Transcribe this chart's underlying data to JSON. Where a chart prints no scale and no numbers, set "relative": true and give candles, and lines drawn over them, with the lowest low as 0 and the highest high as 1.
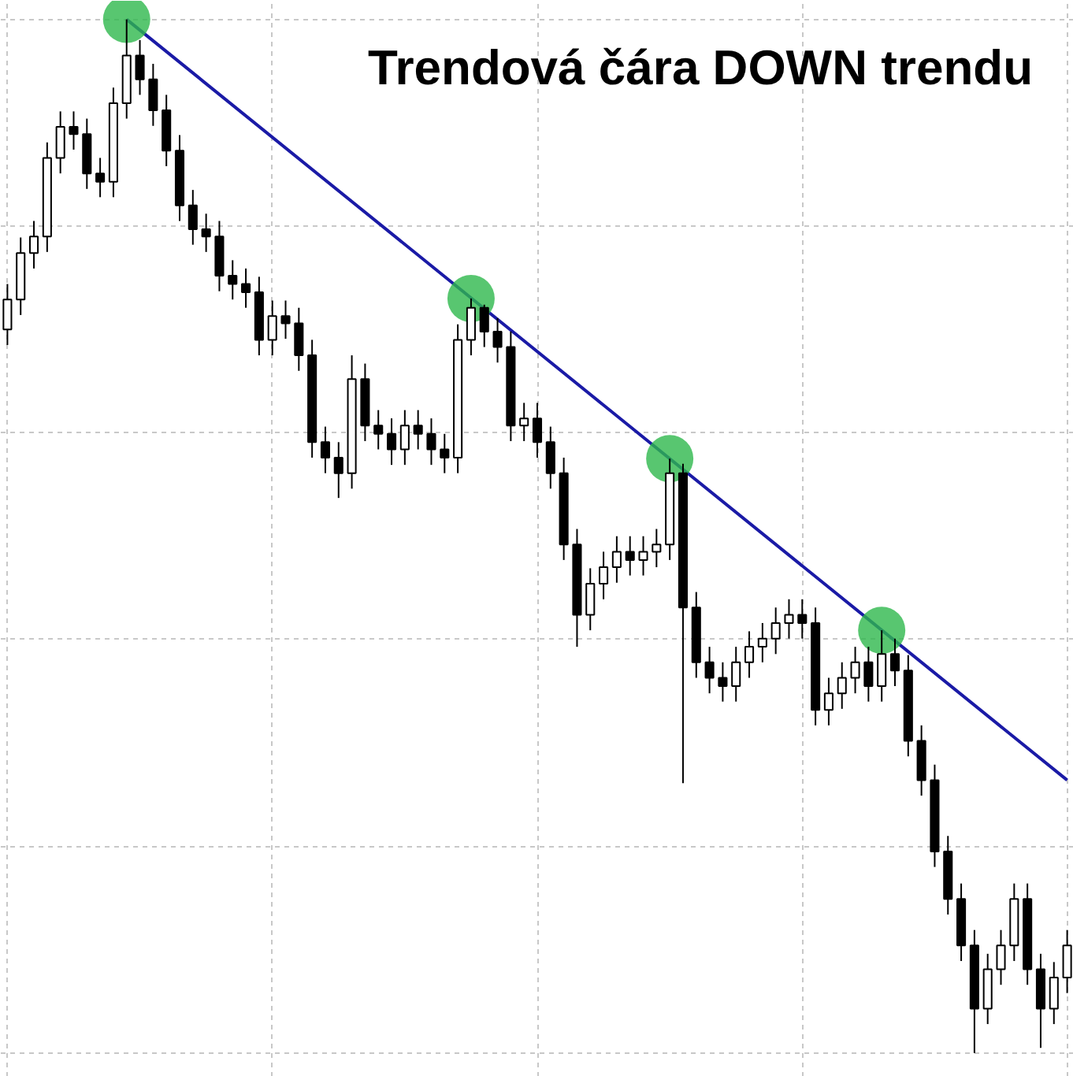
{
  "chart_data": {
    "type": "candlestick",
    "title": "Trendová čára DOWN trendu",
    "relative": true,
    "grid": true,
    "tick_labels": false,
    "categories": [
      null,
      null,
      null,
      null,
      null,
      null,
      null,
      null,
      null,
      null,
      null,
      null,
      null,
      null,
      null,
      null,
      null,
      null,
      null,
      null,
      null,
      null,
      null,
      null,
      null,
      null,
      null,
      null,
      null,
      null,
      null,
      null,
      null,
      null,
      null,
      null,
      null,
      null,
      null,
      null,
      null,
      null,
      null,
      null,
      null,
      null,
      null,
      null,
      null,
      null,
      null,
      null,
      null,
      null,
      null,
      null,
      null,
      null,
      null,
      null,
      null,
      null,
      null,
      null,
      null,
      null,
      null,
      null,
      null,
      null,
      null,
      null,
      null,
      null,
      null,
      null,
      null,
      null,
      null,
      null,
      null
    ],
    "ohlc": [
      [
        0.7,
        0.744,
        0.685,
        0.729
      ],
      [
        0.729,
        0.789,
        0.714,
        0.774
      ],
      [
        0.774,
        0.805,
        0.759,
        0.79
      ],
      [
        0.79,
        0.881,
        0.775,
        0.866
      ],
      [
        0.866,
        0.911,
        0.851,
        0.896
      ],
      [
        0.896,
        0.911,
        0.874,
        0.889
      ],
      [
        0.889,
        0.904,
        0.836,
        0.851
      ],
      [
        0.851,
        0.866,
        0.828,
        0.843
      ],
      [
        0.843,
        0.934,
        0.828,
        0.919
      ],
      [
        0.919,
        1.0,
        0.904,
        0.965
      ],
      [
        0.965,
        0.98,
        0.927,
        0.942
      ],
      [
        0.942,
        0.957,
        0.897,
        0.912
      ],
      [
        0.912,
        0.927,
        0.858,
        0.873
      ],
      [
        0.873,
        0.888,
        0.805,
        0.82
      ],
      [
        0.82,
        0.835,
        0.782,
        0.797
      ],
      [
        0.797,
        0.812,
        0.775,
        0.79
      ],
      [
        0.79,
        0.805,
        0.737,
        0.752
      ],
      [
        0.752,
        0.767,
        0.729,
        0.744
      ],
      [
        0.744,
        0.759,
        0.721,
        0.736
      ],
      [
        0.736,
        0.751,
        0.675,
        0.69
      ],
      [
        0.69,
        0.728,
        0.675,
        0.713
      ],
      [
        0.713,
        0.728,
        0.691,
        0.706
      ],
      [
        0.706,
        0.721,
        0.66,
        0.675
      ],
      [
        0.675,
        0.69,
        0.576,
        0.591
      ],
      [
        0.591,
        0.606,
        0.561,
        0.576
      ],
      [
        0.576,
        0.591,
        0.537,
        0.561
      ],
      [
        0.561,
        0.675,
        0.546,
        0.652
      ],
      [
        0.652,
        0.667,
        0.592,
        0.607
      ],
      [
        0.607,
        0.622,
        0.584,
        0.599
      ],
      [
        0.599,
        0.614,
        0.569,
        0.584
      ],
      [
        0.584,
        0.622,
        0.569,
        0.607
      ],
      [
        0.607,
        0.622,
        0.584,
        0.599
      ],
      [
        0.599,
        0.614,
        0.569,
        0.584
      ],
      [
        0.584,
        0.599,
        0.561,
        0.576
      ],
      [
        0.576,
        0.705,
        0.561,
        0.69
      ],
      [
        0.69,
        0.73,
        0.675,
        0.721
      ],
      [
        0.721,
        0.724,
        0.683,
        0.698
      ],
      [
        0.698,
        0.711,
        0.668,
        0.683
      ],
      [
        0.683,
        0.698,
        0.592,
        0.607
      ],
      [
        0.607,
        0.629,
        0.592,
        0.614
      ],
      [
        0.614,
        0.629,
        0.576,
        0.591
      ],
      [
        0.591,
        0.606,
        0.546,
        0.561
      ],
      [
        0.561,
        0.576,
        0.477,
        0.492
      ],
      [
        0.492,
        0.507,
        0.393,
        0.424
      ],
      [
        0.424,
        0.469,
        0.409,
        0.454
      ],
      [
        0.454,
        0.485,
        0.439,
        0.47
      ],
      [
        0.47,
        0.5,
        0.455,
        0.485
      ],
      [
        0.485,
        0.5,
        0.462,
        0.477
      ],
      [
        0.477,
        0.5,
        0.462,
        0.485
      ],
      [
        0.485,
        0.507,
        0.47,
        0.492
      ],
      [
        0.492,
        0.575,
        0.477,
        0.561
      ],
      [
        0.561,
        0.57,
        0.261,
        0.431
      ],
      [
        0.431,
        0.446,
        0.363,
        0.378
      ],
      [
        0.378,
        0.393,
        0.348,
        0.363
      ],
      [
        0.363,
        0.378,
        0.34,
        0.355
      ],
      [
        0.355,
        0.393,
        0.34,
        0.378
      ],
      [
        0.378,
        0.408,
        0.363,
        0.393
      ],
      [
        0.393,
        0.416,
        0.378,
        0.401
      ],
      [
        0.401,
        0.431,
        0.386,
        0.416
      ],
      [
        0.416,
        0.439,
        0.401,
        0.424
      ],
      [
        0.424,
        0.439,
        0.401,
        0.416
      ],
      [
        0.416,
        0.431,
        0.317,
        0.332
      ],
      [
        0.332,
        0.363,
        0.317,
        0.348
      ],
      [
        0.348,
        0.378,
        0.333,
        0.363
      ],
      [
        0.363,
        0.393,
        0.348,
        0.378
      ],
      [
        0.378,
        0.393,
        0.34,
        0.355
      ],
      [
        0.355,
        0.409,
        0.34,
        0.386
      ],
      [
        0.386,
        0.401,
        0.355,
        0.37
      ],
      [
        0.37,
        0.385,
        0.287,
        0.302
      ],
      [
        0.302,
        0.317,
        0.249,
        0.264
      ],
      [
        0.264,
        0.279,
        0.18,
        0.195
      ],
      [
        0.195,
        0.21,
        0.134,
        0.149
      ],
      [
        0.149,
        0.164,
        0.089,
        0.104
      ],
      [
        0.104,
        0.119,
        0.0,
        0.043
      ],
      [
        0.043,
        0.096,
        0.028,
        0.081
      ],
      [
        0.081,
        0.119,
        0.066,
        0.104
      ],
      [
        0.104,
        0.164,
        0.089,
        0.149
      ],
      [
        0.149,
        0.164,
        0.066,
        0.081
      ],
      [
        0.081,
        0.096,
        0.005,
        0.043
      ],
      [
        0.043,
        0.088,
        0.028,
        0.073
      ],
      [
        0.073,
        0.119,
        0.058,
        0.104
      ]
    ],
    "series": [
      {
        "type": "line",
        "color": "#1a1aa6",
        "values": [
          null,
          null,
          null,
          null,
          null,
          null,
          null,
          null,
          null,
          1.0,
          null,
          null,
          null,
          null,
          null,
          null,
          null,
          null,
          null,
          null,
          null,
          null,
          null,
          null,
          null,
          null,
          null,
          null,
          null,
          null,
          null,
          null,
          null,
          null,
          null,
          null,
          null,
          null,
          null,
          null,
          null,
          null,
          null,
          null,
          null,
          null,
          null,
          null,
          null,
          null,
          null,
          null,
          null,
          null,
          null,
          null,
          null,
          null,
          null,
          null,
          null,
          null,
          null,
          null,
          null,
          null,
          null,
          null,
          null,
          null,
          null,
          null,
          null,
          null,
          null,
          null,
          null,
          null,
          null,
          null,
          0.264
        ]
      },
      {
        "type": "scatter",
        "color": "#2eb84c",
        "marker": "circle",
        "values": [
          null,
          null,
          null,
          null,
          null,
          null,
          null,
          null,
          null,
          1.0,
          null,
          null,
          null,
          null,
          null,
          null,
          null,
          null,
          null,
          null,
          null,
          null,
          null,
          null,
          null,
          null,
          null,
          null,
          null,
          null,
          null,
          null,
          null,
          null,
          null,
          0.73,
          null,
          null,
          null,
          null,
          null,
          null,
          null,
          null,
          null,
          null,
          null,
          null,
          null,
          null,
          0.575,
          null,
          null,
          null,
          null,
          null,
          null,
          null,
          null,
          null,
          null,
          null,
          null,
          null,
          null,
          null,
          0.409,
          null,
          null,
          null,
          null,
          null,
          null,
          null,
          null,
          null,
          null,
          null,
          null,
          null,
          null
        ]
      }
    ]
  }
}
